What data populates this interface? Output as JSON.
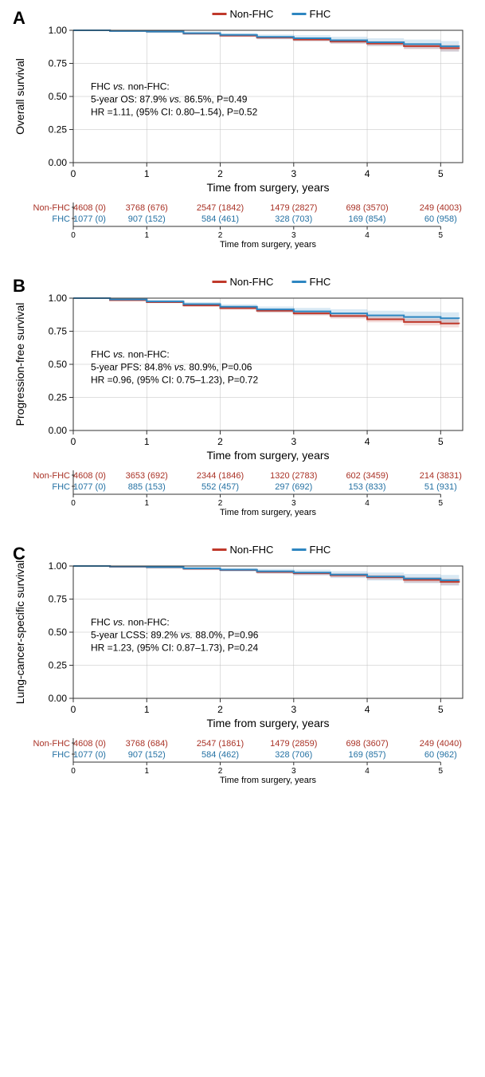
{
  "colors": {
    "nonFHC": "#c0392b",
    "FHC": "#2e86c1",
    "nonFHC_fill": "rgba(192,57,43,0.18)",
    "FHC_fill": "rgba(46,134,193,0.18)",
    "axis": "#333333",
    "grid": "#bfbfbf",
    "text": "#000000",
    "nonFHC_text": "#a93226",
    "FHC_text": "#2471a3",
    "bg": "#ffffff"
  },
  "legend": {
    "nonFHC": "Non-FHC",
    "FHC": "FHC"
  },
  "xticks": [
    0,
    1,
    2,
    3,
    4,
    5
  ],
  "yticks": [
    0.0,
    0.25,
    0.5,
    0.75,
    1.0
  ],
  "xlim": [
    0,
    5.3
  ],
  "ylim": [
    0,
    1.0
  ],
  "xaxis_label": "Time from surgery, years",
  "risk_xaxis_label": "Time from surgery, years",
  "fontsize": {
    "panel_label": 22,
    "axis_label": 14,
    "tick": 12,
    "legend": 13,
    "annot": 12,
    "risk": 11
  },
  "line_width": 2,
  "ci_opacity": 0.18,
  "panels": [
    {
      "label": "A",
      "ylabel": "Overall survival",
      "annot": [
        "FHC vs. non-FHC:",
        "5-year OS: 87.9% vs. 86.5%, P=0.49",
        "HR =1.11, (95% CI: 0.80–1.54), P=0.52"
      ],
      "nonFHC_curve": [
        [
          0,
          1.0
        ],
        [
          0.5,
          0.995
        ],
        [
          1,
          0.99
        ],
        [
          1.5,
          0.975
        ],
        [
          2,
          0.96
        ],
        [
          2.5,
          0.945
        ],
        [
          3,
          0.93
        ],
        [
          3.5,
          0.915
        ],
        [
          4,
          0.9
        ],
        [
          4.5,
          0.88
        ],
        [
          5,
          0.865
        ],
        [
          5.25,
          0.86
        ]
      ],
      "FHC_curve": [
        [
          0,
          1.0
        ],
        [
          0.5,
          0.995
        ],
        [
          1,
          0.99
        ],
        [
          1.5,
          0.978
        ],
        [
          2,
          0.965
        ],
        [
          2.5,
          0.95
        ],
        [
          3,
          0.94
        ],
        [
          3.5,
          0.925
        ],
        [
          4,
          0.91
        ],
        [
          4.5,
          0.895
        ],
        [
          5,
          0.879
        ],
        [
          5.25,
          0.875
        ]
      ],
      "nonFHC_ci": [
        [
          0,
          0.005
        ],
        [
          1,
          0.006
        ],
        [
          2,
          0.008
        ],
        [
          3,
          0.012
        ],
        [
          4,
          0.018
        ],
        [
          5,
          0.025
        ],
        [
          5.25,
          0.028
        ]
      ],
      "FHC_ci": [
        [
          0,
          0.006
        ],
        [
          1,
          0.01
        ],
        [
          2,
          0.015
        ],
        [
          3,
          0.022
        ],
        [
          4,
          0.03
        ],
        [
          5,
          0.04
        ],
        [
          5.25,
          0.045
        ]
      ],
      "risk": {
        "nonFHC": [
          "4608 (0)",
          "3768 (676)",
          "2547 (1842)",
          "1479 (2827)",
          "698 (3570)",
          "249 (4003)"
        ],
        "FHC": [
          "1077 (0)",
          "907 (152)",
          "584 (461)",
          "328 (703)",
          "169 (854)",
          "60 (958)"
        ]
      }
    },
    {
      "label": "B",
      "ylabel": "Progression-free survival",
      "annot": [
        "FHC vs. non-FHC:",
        "5-year PFS: 84.8% vs. 80.9%, P=0.06",
        "HR =0.96, (95% CI: 0.75–1.23), P=0.72"
      ],
      "nonFHC_curve": [
        [
          0,
          1.0
        ],
        [
          0.5,
          0.985
        ],
        [
          1,
          0.97
        ],
        [
          1.5,
          0.945
        ],
        [
          2,
          0.925
        ],
        [
          2.5,
          0.905
        ],
        [
          3,
          0.885
        ],
        [
          3.5,
          0.865
        ],
        [
          4,
          0.84
        ],
        [
          4.5,
          0.82
        ],
        [
          5,
          0.809
        ],
        [
          5.25,
          0.805
        ]
      ],
      "FHC_curve": [
        [
          0,
          1.0
        ],
        [
          0.5,
          0.99
        ],
        [
          1,
          0.975
        ],
        [
          1.5,
          0.955
        ],
        [
          2,
          0.935
        ],
        [
          2.5,
          0.915
        ],
        [
          3,
          0.9
        ],
        [
          3.5,
          0.885
        ],
        [
          4,
          0.87
        ],
        [
          4.5,
          0.858
        ],
        [
          5,
          0.848
        ],
        [
          5.25,
          0.845
        ]
      ],
      "nonFHC_ci": [
        [
          0,
          0.005
        ],
        [
          1,
          0.008
        ],
        [
          2,
          0.012
        ],
        [
          3,
          0.016
        ],
        [
          4,
          0.022
        ],
        [
          5,
          0.03
        ],
        [
          5.25,
          0.033
        ]
      ],
      "FHC_ci": [
        [
          0,
          0.006
        ],
        [
          1,
          0.012
        ],
        [
          2,
          0.018
        ],
        [
          3,
          0.026
        ],
        [
          4,
          0.035
        ],
        [
          5,
          0.045
        ],
        [
          5.25,
          0.05
        ]
      ],
      "risk": {
        "nonFHC": [
          "4608 (0)",
          "3653 (692)",
          "2344 (1846)",
          "1320 (2783)",
          "602 (3459)",
          "214 (3831)"
        ],
        "FHC": [
          "1077 (0)",
          "885 (153)",
          "552 (457)",
          "297 (692)",
          "153 (833)",
          "51 (931)"
        ]
      }
    },
    {
      "label": "C",
      "ylabel": "Lung-cancer-specific survival",
      "annot": [
        "FHC vs. non-FHC:",
        "5-year LCSS: 89.2% vs. 88.0%, P=0.96",
        "HR =1.23, (95% CI: 0.87–1.73), P=0.24"
      ],
      "nonFHC_curve": [
        [
          0,
          1.0
        ],
        [
          0.5,
          0.995
        ],
        [
          1,
          0.99
        ],
        [
          1.5,
          0.98
        ],
        [
          2,
          0.97
        ],
        [
          2.5,
          0.955
        ],
        [
          3,
          0.945
        ],
        [
          3.5,
          0.93
        ],
        [
          4,
          0.915
        ],
        [
          4.5,
          0.895
        ],
        [
          5,
          0.88
        ],
        [
          5.25,
          0.875
        ]
      ],
      "FHC_curve": [
        [
          0,
          1.0
        ],
        [
          0.5,
          0.996
        ],
        [
          1,
          0.992
        ],
        [
          1.5,
          0.982
        ],
        [
          2,
          0.972
        ],
        [
          2.5,
          0.96
        ],
        [
          3,
          0.95
        ],
        [
          3.5,
          0.935
        ],
        [
          4,
          0.92
        ],
        [
          4.5,
          0.905
        ],
        [
          5,
          0.892
        ],
        [
          5.25,
          0.89
        ]
      ],
      "nonFHC_ci": [
        [
          0,
          0.005
        ],
        [
          1,
          0.006
        ],
        [
          2,
          0.008
        ],
        [
          3,
          0.012
        ],
        [
          4,
          0.018
        ],
        [
          5,
          0.025
        ],
        [
          5.25,
          0.028
        ]
      ],
      "FHC_ci": [
        [
          0,
          0.006
        ],
        [
          1,
          0.01
        ],
        [
          2,
          0.015
        ],
        [
          3,
          0.022
        ],
        [
          4,
          0.03
        ],
        [
          5,
          0.04
        ],
        [
          5.25,
          0.045
        ]
      ],
      "risk": {
        "nonFHC": [
          "4608 (0)",
          "3768 (684)",
          "2547 (1861)",
          "1479 (2859)",
          "698 (3607)",
          "249 (4040)"
        ],
        "FHC": [
          "1077 (0)",
          "907 (152)",
          "584 (462)",
          "328 (706)",
          "169 (857)",
          "60 (962)"
        ]
      }
    }
  ]
}
